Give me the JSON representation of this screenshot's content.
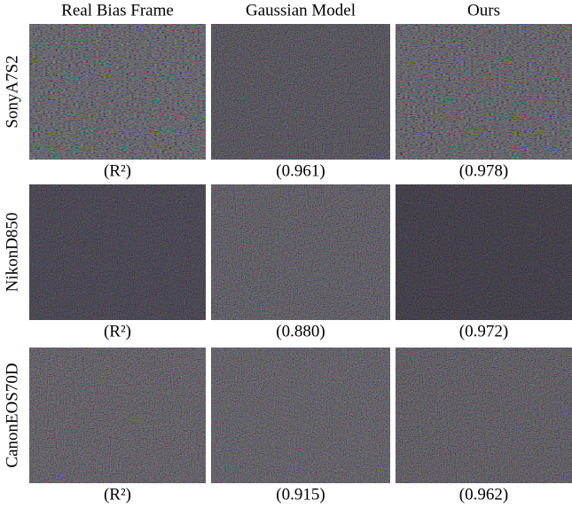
{
  "columns": [
    "Real Bias Frame",
    "Gaussian Model",
    "Ours"
  ],
  "rows": [
    {
      "label": "SonyA7S2",
      "captions": [
        "(R²)",
        "(0.961)",
        "(0.978)"
      ]
    },
    {
      "label": "NikonD850",
      "captions": [
        "(R²)",
        "(0.880)",
        "(0.972)"
      ]
    },
    {
      "label": "CanonEOS70D",
      "captions": [
        "(R²)",
        "(0.915)",
        "(0.962)"
      ]
    }
  ]
}
